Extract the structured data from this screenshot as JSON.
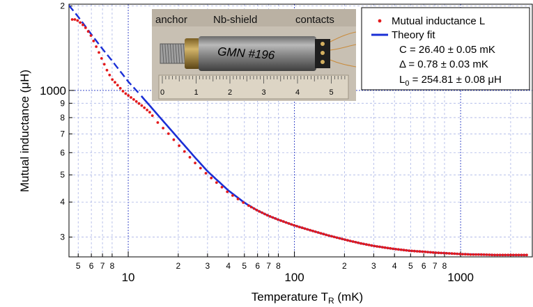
{
  "chart_data": {
    "type": "scatter",
    "xscale": "log",
    "yscale": "log",
    "xlim": [
      4.4,
      2700
    ],
    "ylim": [
      255,
      2030
    ],
    "xlabel": "Temperature T",
    "xlabel_sub": "R",
    "xlabel_unit": " (mK)",
    "ylabel": "Mutual inductance (μH)",
    "x_major_ticks": [
      {
        "value": 10,
        "label": "10"
      },
      {
        "value": 100,
        "label": "100"
      },
      {
        "value": 1000,
        "label": "1000"
      }
    ],
    "x_minor_ticks": [
      {
        "value": 5,
        "label": "5"
      },
      {
        "value": 6,
        "label": "6"
      },
      {
        "value": 7,
        "label": "7"
      },
      {
        "value": 8,
        "label": "8"
      },
      {
        "value": 20,
        "label": "2"
      },
      {
        "value": 30,
        "label": "3"
      },
      {
        "value": 40,
        "label": "4"
      },
      {
        "value": 50,
        "label": "5"
      },
      {
        "value": 60,
        "label": "6"
      },
      {
        "value": 70,
        "label": "7"
      },
      {
        "value": 80,
        "label": "8"
      },
      {
        "value": 200,
        "label": "2"
      },
      {
        "value": 300,
        "label": "3"
      },
      {
        "value": 400,
        "label": "4"
      },
      {
        "value": 500,
        "label": "5"
      },
      {
        "value": 600,
        "label": "6"
      },
      {
        "value": 700,
        "label": "7"
      },
      {
        "value": 800,
        "label": "8"
      },
      {
        "value": 2000,
        "label": ""
      }
    ],
    "y_major_ticks": [
      {
        "value": 1000,
        "label": "1000"
      }
    ],
    "y_minor_ticks": [
      {
        "value": 300,
        "label": "3"
      },
      {
        "value": 400,
        "label": "4"
      },
      {
        "value": 500,
        "label": "5"
      },
      {
        "value": 600,
        "label": "6"
      },
      {
        "value": 700,
        "label": "7"
      },
      {
        "value": 800,
        "label": "8"
      },
      {
        "value": 900,
        "label": "9"
      },
      {
        "value": 2000,
        "label": "2"
      }
    ],
    "grid": true,
    "legend_position": "top-right",
    "series": [
      {
        "name": "Mutual inductance L",
        "style": "points",
        "color": "#e31a1c",
        "x": [
          4.6,
          4.8,
          5.0,
          5.3,
          5.6,
          6.0,
          6.5,
          7.0,
          7.5,
          8.0,
          8.5,
          9.0,
          9.5,
          10,
          11,
          12,
          13.5,
          15,
          17.5,
          20,
          25,
          30,
          40,
          50,
          60,
          70,
          80,
          100,
          130,
          160,
          200,
          250,
          300,
          400,
          500,
          600,
          700,
          800,
          900,
          1000,
          1150,
          1300,
          1600,
          2000,
          2500
        ],
        "y": [
          1790,
          1790,
          1770,
          1720,
          1660,
          1560,
          1410,
          1280,
          1170,
          1095,
          1055,
          1015,
          980,
          960,
          920,
          885,
          835,
          770,
          700,
          640,
          555,
          500,
          432,
          396,
          373,
          357,
          346,
          330,
          315,
          304,
          294,
          285,
          279,
          272,
          268,
          266,
          264,
          263,
          262,
          261,
          260,
          260,
          259,
          259,
          259
        ]
      },
      {
        "name": "Theory fit",
        "style": "line",
        "color": "#1a2fd6",
        "x": [
          4.4,
          5,
          6,
          7,
          8,
          9,
          10,
          12,
          15,
          20,
          25,
          30,
          40,
          50,
          60,
          70,
          80,
          100,
          130,
          160,
          200,
          250,
          300,
          400,
          500,
          600,
          700,
          800,
          900,
          1000,
          1300,
          1600,
          2000,
          2500
        ],
        "y": [
          2010,
          1830,
          1585,
          1405,
          1275,
          1165,
          1075,
          955,
          820,
          675,
          580,
          515,
          440,
          398,
          373,
          357,
          346,
          330,
          315,
          304,
          294,
          285,
          279,
          272,
          268,
          266,
          264,
          263,
          262,
          261,
          260,
          259,
          259,
          259
        ]
      }
    ],
    "legend": {
      "items": [
        {
          "label": "Mutual inductance L"
        },
        {
          "label": "Theory fit"
        }
      ],
      "params": [
        "C = 26.40 ± 0.05 mK",
        "Δ = 0.78 ± 0.03 mK",
        "L",
        "0",
        " = 254.81 ± 0.08 μH"
      ]
    },
    "inset_photo": {
      "labels": [
        "anchor",
        "Nb-shield",
        "contacts"
      ],
      "handwriting": "GMN #196",
      "ruler_numbers": [
        "0",
        "1",
        "2",
        "3",
        "4",
        "5"
      ]
    }
  }
}
